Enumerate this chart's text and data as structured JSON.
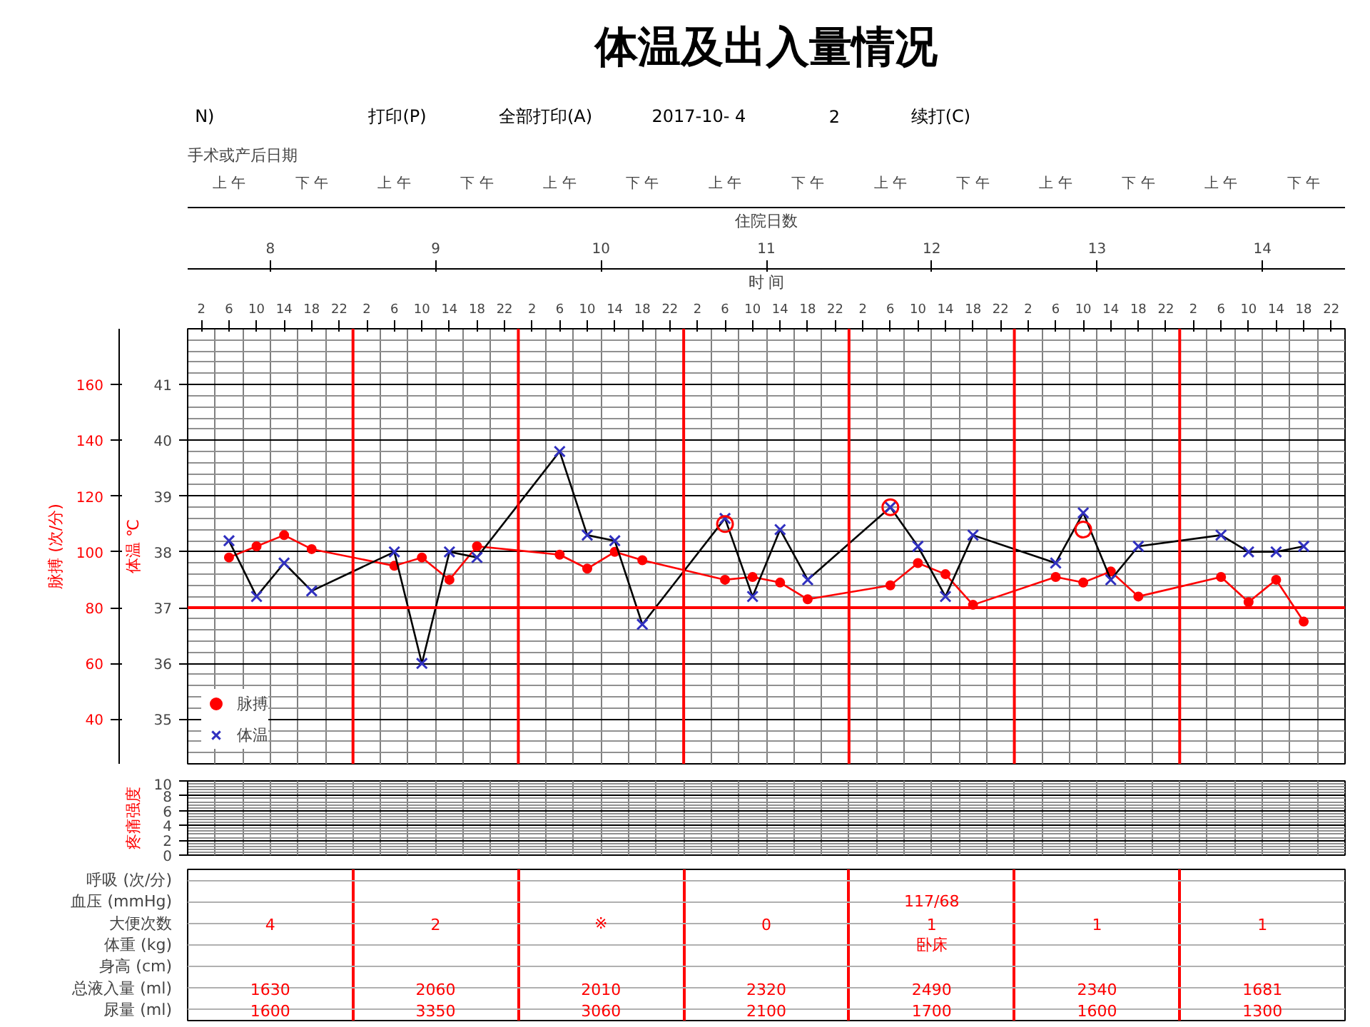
{
  "chart_data": [
    {
      "type": "other",
      "title": "体温及出入量情况",
      "annotations": [
        "N)",
        "打印(P)",
        "全部打印(A)",
        "2017-10-  4",
        "2",
        "续打(C)"
      ]
    },
    {
      "type": "line",
      "xlabel": "时 间",
      "x2label": "住院日数",
      "ylabel": "体温 ℃",
      "y2label": "脉搏 (次/分)",
      "annotations": [
        "手术或产后日期",
        "上 午",
        "下 午",
        "上 午",
        "下 午",
        "上 午",
        "下 午",
        "上 午",
        "下 午",
        "上 午",
        "下 午",
        "上 午",
        "下 午",
        "上 午",
        "下 午"
      ],
      "xlim": [
        "2017-10-08T00:00",
        "2017-10-15T00:00"
      ],
      "x2lim": [
        "2017-10-08T00:00",
        "2017-10-15T00:00"
      ],
      "xticks": [
        {
          "value": "2017-10-08T02:00",
          "label": "2"
        },
        {
          "value": "2017-10-08T06:00",
          "label": "6"
        },
        {
          "value": "2017-10-08T10:00",
          "label": "10"
        },
        {
          "value": "2017-10-08T14:00",
          "label": "14"
        },
        {
          "value": "2017-10-08T18:00",
          "label": "18"
        },
        {
          "value": "2017-10-08T22:00",
          "label": "22"
        },
        {
          "value": "2017-10-09T02:00",
          "label": "2"
        },
        {
          "value": "2017-10-09T06:00",
          "label": "6"
        },
        {
          "value": "2017-10-09T10:00",
          "label": "10"
        },
        {
          "value": "2017-10-09T14:00",
          "label": "14"
        },
        {
          "value": "2017-10-09T18:00",
          "label": "18"
        },
        {
          "value": "2017-10-09T22:00",
          "label": "22"
        },
        {
          "value": "2017-10-10T02:00",
          "label": "2"
        },
        {
          "value": "2017-10-10T06:00",
          "label": "6"
        },
        {
          "value": "2017-10-10T10:00",
          "label": "10"
        },
        {
          "value": "2017-10-10T14:00",
          "label": "14"
        },
        {
          "value": "2017-10-10T18:00",
          "label": "18"
        },
        {
          "value": "2017-10-10T22:00",
          "label": "22"
        },
        {
          "value": "2017-10-11T02:00",
          "label": "2"
        },
        {
          "value": "2017-10-11T06:00",
          "label": "6"
        },
        {
          "value": "2017-10-11T10:00",
          "label": "10"
        },
        {
          "value": "2017-10-11T14:00",
          "label": "14"
        },
        {
          "value": "2017-10-11T18:00",
          "label": "18"
        },
        {
          "value": "2017-10-11T22:00",
          "label": "22"
        },
        {
          "value": "2017-10-12T02:00",
          "label": "2"
        },
        {
          "value": "2017-10-12T06:00",
          "label": "6"
        },
        {
          "value": "2017-10-12T10:00",
          "label": "10"
        },
        {
          "value": "2017-10-12T14:00",
          "label": "14"
        },
        {
          "value": "2017-10-12T18:00",
          "label": "18"
        },
        {
          "value": "2017-10-12T22:00",
          "label": "22"
        },
        {
          "value": "2017-10-13T02:00",
          "label": "2"
        },
        {
          "value": "2017-10-13T06:00",
          "label": "6"
        },
        {
          "value": "2017-10-13T10:00",
          "label": "10"
        },
        {
          "value": "2017-10-13T14:00",
          "label": "14"
        },
        {
          "value": "2017-10-13T18:00",
          "label": "18"
        },
        {
          "value": "2017-10-13T22:00",
          "label": "22"
        },
        {
          "value": "2017-10-14T02:00",
          "label": "2"
        },
        {
          "value": "2017-10-14T06:00",
          "label": "6"
        },
        {
          "value": "2017-10-14T10:00",
          "label": "10"
        },
        {
          "value": "2017-10-14T14:00",
          "label": "14"
        },
        {
          "value": "2017-10-14T18:00",
          "label": "18"
        },
        {
          "value": "2017-10-14T22:00",
          "label": "22"
        }
      ],
      "x2ticks": [
        {
          "value": "2017-10-08T12:00",
          "label": "8"
        },
        {
          "value": "2017-10-09T12:00",
          "label": "9"
        },
        {
          "value": "2017-10-10T12:00",
          "label": "10"
        },
        {
          "value": "2017-10-11T12:00",
          "label": "11"
        },
        {
          "value": "2017-10-12T12:00",
          "label": "12"
        },
        {
          "value": "2017-10-13T12:00",
          "label": "13"
        },
        {
          "value": "2017-10-14T12:00",
          "label": "14"
        }
      ],
      "ylim": [
        34.2,
        42
      ],
      "yticks": [
        35,
        36,
        37,
        38,
        39,
        40,
        41
      ],
      "y2lim": [
        24,
        180
      ],
      "y2ticks": [
        40,
        60,
        80,
        100,
        120,
        140,
        160
      ],
      "x": [
        "2017-10-08T06:00",
        "2017-10-08T10:00",
        "2017-10-08T14:00",
        "2017-10-08T18:00",
        "2017-10-09T06:00",
        "2017-10-09T10:00",
        "2017-10-09T14:00",
        "2017-10-09T18:00",
        "2017-10-10T06:00",
        "2017-10-10T10:00",
        "2017-10-10T14:00",
        "2017-10-10T18:00",
        "2017-10-11T06:00",
        "2017-10-11T10:00",
        "2017-10-11T14:00",
        "2017-10-11T18:00",
        "2017-10-12T06:00",
        "2017-10-12T10:00",
        "2017-10-12T14:00",
        "2017-10-12T18:00",
        "2017-10-13T06:00",
        "2017-10-13T10:00",
        "2017-10-13T14:00",
        "2017-10-13T18:00",
        "2017-10-14T06:00",
        "2017-10-14T10:00",
        "2017-10-14T14:00",
        "2017-10-14T18:00"
      ],
      "series": [
        {
          "name": "脉搏",
          "type": "line",
          "axis": "y2",
          "color": "#ff0000",
          "marker": "circle",
          "values": [
            98,
            102,
            106,
            101,
            95,
            98,
            90,
            102,
            99,
            94,
            100,
            97,
            90,
            91,
            89,
            83,
            88,
            96,
            92,
            81,
            91,
            89,
            93,
            84,
            91,
            82,
            90,
            75
          ]
        },
        {
          "name": "体温",
          "type": "line",
          "color": "#000000",
          "colors": [
            "#3030c0",
            "#3030c0",
            "#3030c0",
            "#3030c0",
            "#3030c0",
            "#3030c0",
            "#3030c0",
            "#3030c0",
            "#3030c0",
            "#3030c0",
            "#3030c0",
            "#3030c0",
            "#3030c0",
            "#3030c0",
            "#3030c0",
            "#3030c0",
            "#3030c0",
            "#3030c0",
            "#3030c0",
            "#3030c0",
            "#3030c0",
            "#3030c0",
            "#3030c0",
            "#3030c0",
            "#3030c0",
            "#3030c0",
            "#3030c0",
            "#3030c0"
          ],
          "marker": "cross",
          "values": [
            38.2,
            37.2,
            37.8,
            37.3,
            38.0,
            36.0,
            38.0,
            37.9,
            39.8,
            38.3,
            38.2,
            36.7,
            38.6,
            37.2,
            38.4,
            37.5,
            38.8,
            38.1,
            37.2,
            38.3,
            37.8,
            38.7,
            37.5,
            38.1,
            38.3,
            38.0,
            38.0,
            38.1
          ]
        },
        {
          "type": "scatter",
          "color": "#ff0000",
          "marker": "circle",
          "x": [
            "2017-10-11T06:00",
            "2017-10-12T06:00",
            "2017-10-13T10:00"
          ],
          "values": [
            38.5,
            38.8,
            38.4
          ]
        }
      ],
      "ref_lines": [
        {
          "axis": "y",
          "value": 37,
          "color": "#ff0000"
        },
        {
          "axis": "x",
          "value": "2017-10-09",
          "color": "#ff0000"
        },
        {
          "axis": "x",
          "value": "2017-10-10",
          "color": "#ff0000"
        },
        {
          "axis": "x",
          "value": "2017-10-11",
          "color": "#ff0000"
        },
        {
          "axis": "x",
          "value": "2017-10-12",
          "color": "#ff0000"
        },
        {
          "axis": "x",
          "value": "2017-10-13",
          "color": "#ff0000"
        },
        {
          "axis": "x",
          "value": "2017-10-14",
          "color": "#ff0000"
        }
      ],
      "grid": true,
      "legend": "bottom left"
    },
    {
      "type": "line",
      "ylabel": "疼痛强度",
      "xlim": [
        "2017-10-08T00:00",
        "2017-10-15T00:00"
      ],
      "ylim": [
        0,
        10
      ],
      "yticks": [
        0,
        2,
        4,
        6,
        8,
        10
      ],
      "grid": true,
      "tick_labels": "y"
    },
    {
      "type": "other",
      "categories": [
        null,
        null,
        null,
        null,
        null,
        null,
        null
      ],
      "y_categories": [
        "呼吸 (次/分)",
        "血压 (mmHg)",
        "大便次数",
        "体重 (kg)",
        "身高 (cm)",
        "总液入量 (ml)",
        "尿量 (ml)"
      ],
      "cell_labels": [
        [
          null,
          null,
          null,
          null,
          null,
          null,
          null
        ],
        [
          null,
          null,
          null,
          null,
          "117/68",
          null,
          null
        ],
        [
          "4",
          "2",
          "※",
          "0",
          "1",
          "1",
          "1"
        ],
        [
          null,
          null,
          null,
          null,
          "卧床",
          null,
          null
        ],
        [
          null,
          null,
          null,
          null,
          null,
          null,
          null
        ],
        [
          "1630",
          "2060",
          "2010",
          "2320",
          "2490",
          "2340",
          "1681"
        ],
        [
          "1600",
          "3350",
          "3060",
          "2100",
          "1700",
          "1600",
          "1300"
        ]
      ]
    }
  ]
}
